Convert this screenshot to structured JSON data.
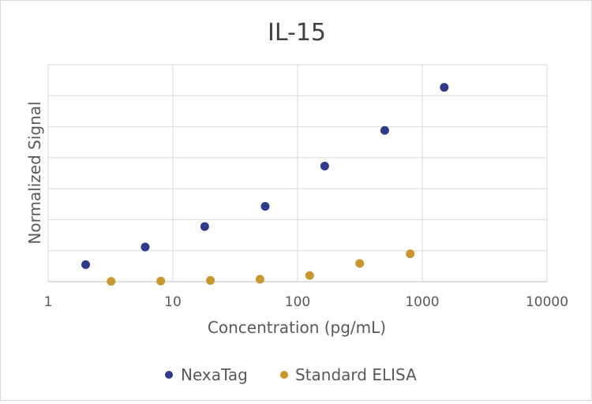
{
  "chart_data": {
    "type": "scatter",
    "title": "IL-15",
    "xlabel": "Concentration (pg/mL)",
    "ylabel": "Normalized Signal",
    "x_scale": "log",
    "xlim": [
      1,
      10000
    ],
    "x_ticks": [
      "1",
      "10",
      "100",
      "1000",
      "10000"
    ],
    "ylim": [
      0,
      7
    ],
    "y_tick_labels_shown": false,
    "grid": true,
    "legend": "bottom",
    "series": [
      {
        "name": "NexaTag",
        "color": "#2e3a8c",
        "x": [
          2,
          6,
          18,
          55,
          165,
          500,
          1500
        ],
        "y": [
          0.55,
          1.12,
          1.78,
          2.43,
          3.73,
          4.88,
          6.27
        ]
      },
      {
        "name": "Standard ELISA",
        "color": "#c9972e",
        "x": [
          3.2,
          8,
          20,
          50,
          125,
          315,
          800
        ],
        "y": [
          0.01,
          0.02,
          0.04,
          0.08,
          0.2,
          0.59,
          0.9
        ]
      }
    ]
  }
}
